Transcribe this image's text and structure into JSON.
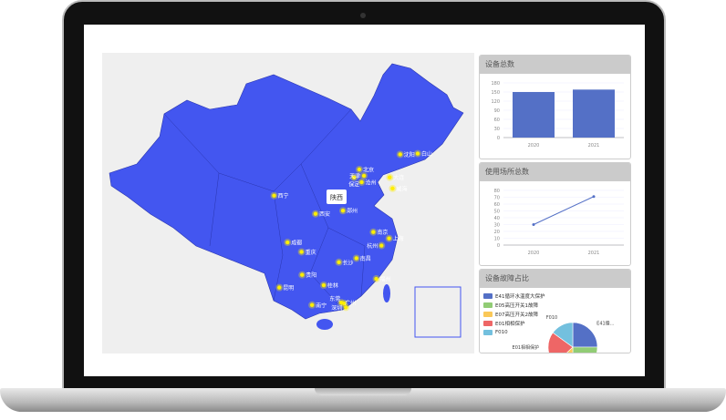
{
  "map": {
    "tooltip": "陕西",
    "colors": {
      "land": "#4356f0",
      "border": "#2a36b0",
      "marker": "#ffee00"
    },
    "cities": [
      {
        "name": "沈阳",
        "lon": 123.4,
        "lat": 41.8
      },
      {
        "name": "白山",
        "lon": 126.4,
        "lat": 41.9
      },
      {
        "name": "北京",
        "lon": 116.4,
        "lat": 39.9
      },
      {
        "name": "天津",
        "lon": 117.2,
        "lat": 39.1
      },
      {
        "name": "保定",
        "lon": 115.5,
        "lat": 38.9
      },
      {
        "name": "沧州",
        "lon": 116.8,
        "lat": 38.3
      },
      {
        "name": "大连",
        "lon": 121.6,
        "lat": 38.9
      },
      {
        "name": "威海",
        "lon": 122.1,
        "lat": 37.5
      },
      {
        "name": "西宁",
        "lon": 101.8,
        "lat": 36.6
      },
      {
        "name": "西安",
        "lon": 108.9,
        "lat": 34.3
      },
      {
        "name": "郑州",
        "lon": 113.6,
        "lat": 34.7
      },
      {
        "name": "南京",
        "lon": 118.8,
        "lat": 32.0
      },
      {
        "name": "上海",
        "lon": 121.5,
        "lat": 31.2
      },
      {
        "name": "杭州",
        "lon": 120.2,
        "lat": 30.3
      },
      {
        "name": "成都",
        "lon": 104.1,
        "lat": 30.7
      },
      {
        "name": "重庆",
        "lon": 106.5,
        "lat": 29.5
      },
      {
        "name": "长沙",
        "lon": 112.9,
        "lat": 28.2
      },
      {
        "name": "南昌",
        "lon": 115.9,
        "lat": 28.7
      },
      {
        "name": "福州",
        "lon": 119.3,
        "lat": 26.1
      },
      {
        "name": "贵阳",
        "lon": 106.6,
        "lat": 26.6
      },
      {
        "name": "昆明",
        "lon": 102.7,
        "lat": 25.0
      },
      {
        "name": "桂林",
        "lon": 110.3,
        "lat": 25.3
      },
      {
        "name": "南宁",
        "lon": 108.3,
        "lat": 22.8
      },
      {
        "name": "广州",
        "lon": 113.3,
        "lat": 23.1
      },
      {
        "name": "深圳",
        "lon": 114.1,
        "lat": 22.5
      },
      {
        "name": "东莞",
        "lon": 113.8,
        "lat": 23.0
      }
    ]
  },
  "panels": {
    "devices": "设备总数",
    "venues": "使用场所总数",
    "faults": "设备故障占比"
  },
  "chart_data": [
    {
      "type": "bar",
      "title": "设备总数",
      "categories": [
        "2020",
        "2021"
      ],
      "values": [
        150,
        158
      ],
      "ylim": [
        0,
        180
      ],
      "yticks": [
        0,
        30,
        60,
        90,
        120,
        150,
        180
      ],
      "color": "#5470c6"
    },
    {
      "type": "line",
      "title": "使用场所总数",
      "categories": [
        "2020",
        "2021"
      ],
      "values": [
        30,
        71
      ],
      "ylim": [
        0,
        80
      ],
      "yticks": [
        0,
        10,
        20,
        30,
        40,
        50,
        60,
        70,
        80
      ],
      "color": "#5470c6"
    },
    {
      "type": "pie",
      "title": "设备故障占比",
      "legend": "top-left",
      "series": [
        {
          "name": "E41循环水温度大保护",
          "label": "E41循...",
          "value": 25,
          "color": "#5470c6"
        },
        {
          "name": "E05高压开关1故障",
          "value": 25,
          "color": "#91cc75"
        },
        {
          "name": "E07高压开关2故障",
          "value": 13,
          "color": "#fac858"
        },
        {
          "name": "E01相相保护",
          "label": "E01相相保护",
          "value": 22,
          "color": "#ee6666"
        },
        {
          "name": "F010",
          "label": "F010",
          "value": 15,
          "color": "#73c0de"
        }
      ]
    }
  ]
}
